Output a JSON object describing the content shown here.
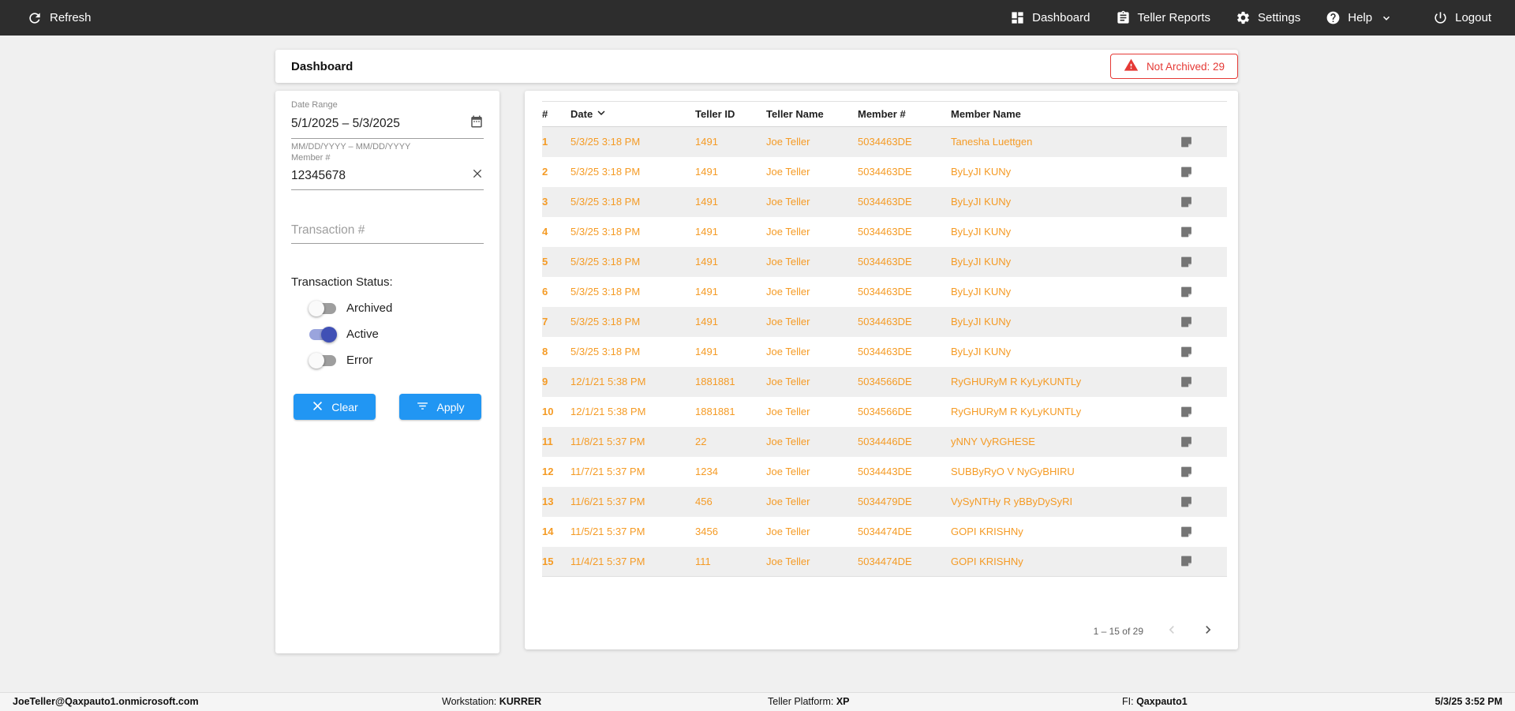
{
  "topbar": {
    "refresh_label": "Refresh",
    "nav": [
      {
        "label": "Dashboard",
        "icon": "dashboard-icon"
      },
      {
        "label": "Teller Reports",
        "icon": "teller-reports-icon"
      },
      {
        "label": "Settings",
        "icon": "settings-icon"
      },
      {
        "label": "Help",
        "icon": "help-icon"
      },
      {
        "label": "Logout",
        "icon": "logout-icon"
      }
    ]
  },
  "header": {
    "title": "Dashboard",
    "not_archived_badge": "Not Archived: 29"
  },
  "filters": {
    "date_range": {
      "label": "Date Range",
      "value": "5/1/2025 – 5/3/2025",
      "helper": "MM/DD/YYYY – MM/DD/YYYY"
    },
    "member": {
      "label": "Member #",
      "value": "12345678"
    },
    "transaction": {
      "placeholder": "Transaction #"
    },
    "status": {
      "heading": "Transaction Status:",
      "toggles": [
        {
          "label": "Archived",
          "on": false
        },
        {
          "label": "Active",
          "on": true
        },
        {
          "label": "Error",
          "on": false
        }
      ]
    },
    "clear_label": "Clear",
    "apply_label": "Apply"
  },
  "table": {
    "columns": [
      "#",
      "Date",
      "Teller ID",
      "Teller Name",
      "Member #",
      "Member Name"
    ],
    "sorted_column": "Date",
    "rows": [
      {
        "n": "1",
        "date": "5/3/25 3:18 PM",
        "teller_id": "1491",
        "teller_name": "Joe Teller",
        "member_number": "5034463DE",
        "member_name": "Tanesha Luettgen"
      },
      {
        "n": "2",
        "date": "5/3/25 3:18 PM",
        "teller_id": "1491",
        "teller_name": "Joe Teller",
        "member_number": "5034463DE",
        "member_name": "ByLyJI KUNy"
      },
      {
        "n": "3",
        "date": "5/3/25 3:18 PM",
        "teller_id": "1491",
        "teller_name": "Joe Teller",
        "member_number": "5034463DE",
        "member_name": "ByLyJI KUNy"
      },
      {
        "n": "4",
        "date": "5/3/25 3:18 PM",
        "teller_id": "1491",
        "teller_name": "Joe Teller",
        "member_number": "5034463DE",
        "member_name": "ByLyJI KUNy"
      },
      {
        "n": "5",
        "date": "5/3/25 3:18 PM",
        "teller_id": "1491",
        "teller_name": "Joe Teller",
        "member_number": "5034463DE",
        "member_name": "ByLyJI KUNy"
      },
      {
        "n": "6",
        "date": "5/3/25 3:18 PM",
        "teller_id": "1491",
        "teller_name": "Joe Teller",
        "member_number": "5034463DE",
        "member_name": "ByLyJI KUNy"
      },
      {
        "n": "7",
        "date": "5/3/25 3:18 PM",
        "teller_id": "1491",
        "teller_name": "Joe Teller",
        "member_number": "5034463DE",
        "member_name": "ByLyJI KUNy"
      },
      {
        "n": "8",
        "date": "5/3/25 3:18 PM",
        "teller_id": "1491",
        "teller_name": "Joe Teller",
        "member_number": "5034463DE",
        "member_name": "ByLyJI KUNy"
      },
      {
        "n": "9",
        "date": "12/1/21 5:38 PM",
        "teller_id": "1881881",
        "teller_name": "Joe Teller",
        "member_number": "5034566DE",
        "member_name": "RyGHURyM R KyLyKUNTLy"
      },
      {
        "n": "10",
        "date": "12/1/21 5:38 PM",
        "teller_id": "1881881",
        "teller_name": "Joe Teller",
        "member_number": "5034566DE",
        "member_name": "RyGHURyM R KyLyKUNTLy"
      },
      {
        "n": "11",
        "date": "11/8/21 5:37 PM",
        "teller_id": "22",
        "teller_name": "Joe Teller",
        "member_number": "5034446DE",
        "member_name": "yNNY VyRGHESE"
      },
      {
        "n": "12",
        "date": "11/7/21 5:37 PM",
        "teller_id": "1234",
        "teller_name": "Joe Teller",
        "member_number": "5034443DE",
        "member_name": "SUBByRyO V NyGyBHIRU"
      },
      {
        "n": "13",
        "date": "11/6/21 5:37 PM",
        "teller_id": "456",
        "teller_name": "Joe Teller",
        "member_number": "5034479DE",
        "member_name": "VySyNTHy R yBByDySyRI"
      },
      {
        "n": "14",
        "date": "11/5/21 5:37 PM",
        "teller_id": "3456",
        "teller_name": "Joe Teller",
        "member_number": "5034474DE",
        "member_name": "GOPI KRISHNy"
      },
      {
        "n": "15",
        "date": "11/4/21 5:37 PM",
        "teller_id": "111",
        "teller_name": "Joe Teller",
        "member_number": "5034474DE",
        "member_name": "GOPI KRISHNy"
      }
    ],
    "pagination": {
      "label": "1 – 15 of 29"
    }
  },
  "statusbar": {
    "user": "JoeTeller@Qaxpauto1.onmicrosoft.com",
    "workstation_label": "Workstation:",
    "workstation_value": "KURRER",
    "platform_label": "Teller Platform:",
    "platform_value": "XP",
    "fi_label": "FI:",
    "fi_value": "Qaxpauto1",
    "datetime": "5/3/25 3:52 PM"
  },
  "icons": {
    "refresh-icon": "circular reload arrow",
    "dashboard-icon": "four-tile grid",
    "teller-reports-icon": "clipboard with lines",
    "settings-icon": "gear",
    "help-icon": "question mark in circle",
    "logout-icon": "power symbol",
    "warning-icon": "red triangle exclamation",
    "calendar-icon": "date range calendar",
    "clear-x-icon": "x cross",
    "filter-icon": "filter list lines",
    "sort-down-icon": "chevron down",
    "note-icon": "gray sticky note",
    "chevron-left-icon": "angle left",
    "chevron-right-icon": "angle right"
  },
  "colors": {
    "topbar_bg": "#2d2d2d",
    "accent_blue": "#2196f3",
    "row_orange": "#f59b25",
    "alert_red": "#e53935",
    "toggle_on_indigo": "#4050b5"
  }
}
